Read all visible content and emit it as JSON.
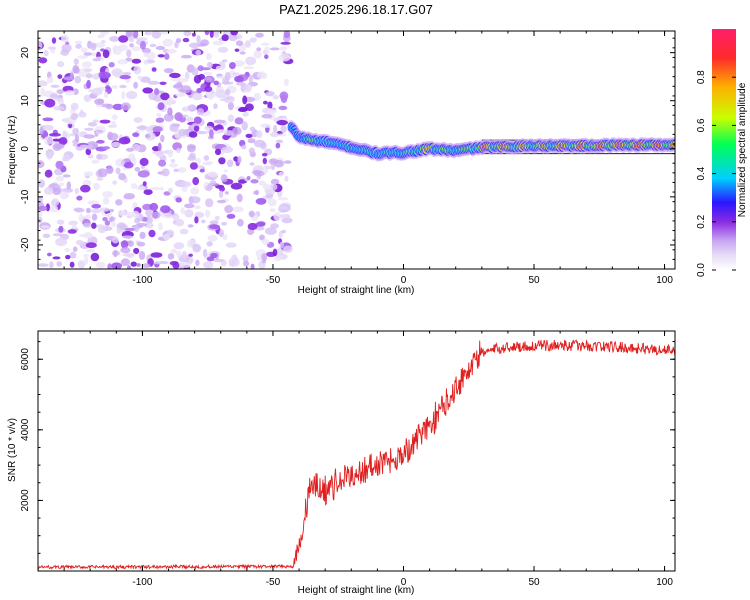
{
  "figure_title": "PAZ1.2025.296.18.17.G07",
  "chart_data": [
    {
      "type": "heatmap",
      "title": "PAZ1.2025.296.18.17.G07",
      "xlabel": "Height of straight line (km)",
      "ylabel": "Frequency (Hz)",
      "xlim": [
        -140,
        104
      ],
      "ylim": [
        -25,
        24.5
      ],
      "xticks": [
        -100,
        -50,
        0,
        50,
        100
      ],
      "yticks": [
        -20,
        -10,
        0,
        10,
        20
      ],
      "colorbar": {
        "label": "Normalized spectral amplitude",
        "range": [
          0,
          1
        ],
        "ticks": [
          "0.0",
          "0.2",
          "0.4",
          "0.6",
          "0.8"
        ],
        "colors": [
          "#e6ddf6",
          "#c9a8f3",
          "#8a2be2",
          "#2a16ff",
          "#00cfff",
          "#00ff55",
          "#c8ff00",
          "#ffb000",
          "#ff2a2a",
          "#ff1f6a"
        ]
      },
      "noise_region_x": [
        -140,
        -44
      ],
      "ridge_knots": [
        {
          "x": -43,
          "f": 4.5,
          "amp": 0.25
        },
        {
          "x": -40,
          "f": 2.5,
          "amp": 0.45
        },
        {
          "x": -35,
          "f": 1.8,
          "amp": 0.7
        },
        {
          "x": -30,
          "f": 1.5,
          "amp": 0.6
        },
        {
          "x": -20,
          "f": 0.3,
          "amp": 0.6
        },
        {
          "x": -10,
          "f": -1.0,
          "amp": 0.55
        },
        {
          "x": 0,
          "f": -0.8,
          "amp": 0.6
        },
        {
          "x": 10,
          "f": 0.0,
          "amp": 0.85
        },
        {
          "x": 20,
          "f": -0.4,
          "amp": 0.65
        },
        {
          "x": 30,
          "f": 0.3,
          "amp": 0.9
        },
        {
          "x": 50,
          "f": 0.6,
          "amp": 0.85
        },
        {
          "x": 70,
          "f": 0.6,
          "amp": 0.9
        },
        {
          "x": 85,
          "f": 0.8,
          "amp": 0.95
        },
        {
          "x": 104,
          "f": 0.8,
          "amp": 0.95
        }
      ],
      "reference_lines_f": [
        -1.0,
        1.8
      ]
    },
    {
      "type": "line",
      "xlabel": "Height of straight line (km)",
      "ylabel": "SNR (10 * v/v)",
      "xlim": [
        -140,
        104
      ],
      "ylim": [
        0,
        6800
      ],
      "xticks": [
        -100,
        -50,
        0,
        50,
        100
      ],
      "yticks": [
        2000,
        4000,
        6000
      ],
      "series": [
        {
          "name": "SNR",
          "color": "#e02020",
          "trend_knots": [
            {
              "x": -140,
              "snr": 90
            },
            {
              "x": -42,
              "snr": 110
            },
            {
              "x": -39,
              "snr": 900
            },
            {
              "x": -36,
              "snr": 2400
            },
            {
              "x": -30,
              "snr": 2300
            },
            {
              "x": -20,
              "snr": 2700
            },
            {
              "x": -10,
              "snr": 3000
            },
            {
              "x": 0,
              "snr": 3300
            },
            {
              "x": 10,
              "snr": 4100
            },
            {
              "x": 20,
              "snr": 5200
            },
            {
              "x": 30,
              "snr": 6200
            },
            {
              "x": 40,
              "snr": 6350
            },
            {
              "x": 60,
              "snr": 6400
            },
            {
              "x": 80,
              "snr": 6350
            },
            {
              "x": 104,
              "snr": 6250
            }
          ]
        }
      ]
    }
  ]
}
